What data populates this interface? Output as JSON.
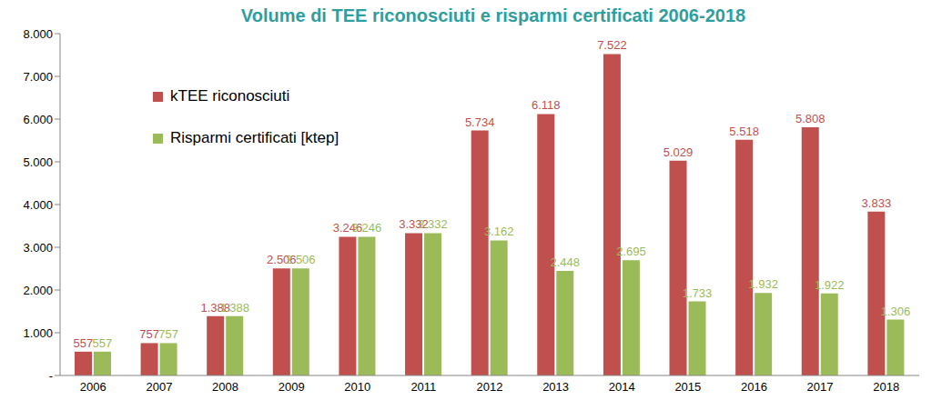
{
  "chart_data": {
    "type": "bar",
    "title": "Volume di TEE riconosciuti e risparmi certificati 2006-2018",
    "categories": [
      "2006",
      "2007",
      "2008",
      "2009",
      "2010",
      "2011",
      "2012",
      "2013",
      "2014",
      "2015",
      "2016",
      "2017",
      "2018"
    ],
    "series": [
      {
        "name": "kTEE riconosciuti",
        "color": "#c0504d",
        "values": [
          557,
          757,
          1388,
          2506,
          3246,
          3332,
          5734,
          6118,
          7522,
          5029,
          5518,
          5808,
          3833
        ],
        "value_labels": [
          "557",
          "757",
          "1.388",
          "2.506",
          "3.246",
          "3.332",
          "5.734",
          "6.118",
          "7.522",
          "5.029",
          "5.518",
          "5.808",
          "3.833"
        ]
      },
      {
        "name": "Risparmi certificati [ktep]",
        "color": "#9bbb59",
        "values": [
          557,
          757,
          1388,
          2506,
          3246,
          3332,
          3162,
          2448,
          2695,
          1733,
          1932,
          1922,
          1306
        ],
        "value_labels": [
          "557",
          "757",
          "1.388",
          "2.506",
          "3.246",
          "3.332",
          "3.162",
          "2.448",
          "2.695",
          "1.733",
          "1.932",
          "1.922",
          "1.306"
        ]
      }
    ],
    "ylim": [
      0,
      8000
    ],
    "yticks": [
      {
        "value": 0,
        "label": "-"
      },
      {
        "value": 1000,
        "label": "1.000"
      },
      {
        "value": 2000,
        "label": "2.000"
      },
      {
        "value": 3000,
        "label": "3.000"
      },
      {
        "value": 4000,
        "label": "4.000"
      },
      {
        "value": 5000,
        "label": "5.000"
      },
      {
        "value": 6000,
        "label": "6.000"
      },
      {
        "value": 7000,
        "label": "7.000"
      },
      {
        "value": 8000,
        "label": "8.000"
      }
    ],
    "grid": false,
    "legend": "upper left",
    "data_labels": true
  }
}
